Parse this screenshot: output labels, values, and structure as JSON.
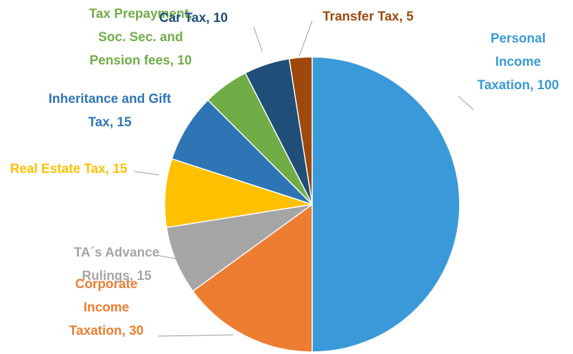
{
  "chart_data": {
    "type": "pie",
    "values": [
      100,
      30,
      15,
      15,
      15,
      10,
      10,
      5
    ],
    "value_labels": [
      "Personal Income Taxation, 100",
      "Corporate Income Taxation, 30",
      "TA´s Advance Rulings, 15",
      "Real Estate Tax, 15",
      "Inheritance and Gift Tax, 15",
      "Tax Prepayment, Soc. Sec. and Pension fees, 10",
      "Car Tax, 10",
      "Transfer Tax, 5"
    ],
    "colors": [
      "#3a9ad9",
      "#ed7d31",
      "#a5a5a5",
      "#ffc000",
      "#2e75b6",
      "#70ad47",
      "#1f4e79",
      "#9e480e"
    ],
    "start_angle": 0,
    "direction": "clockwise"
  }
}
